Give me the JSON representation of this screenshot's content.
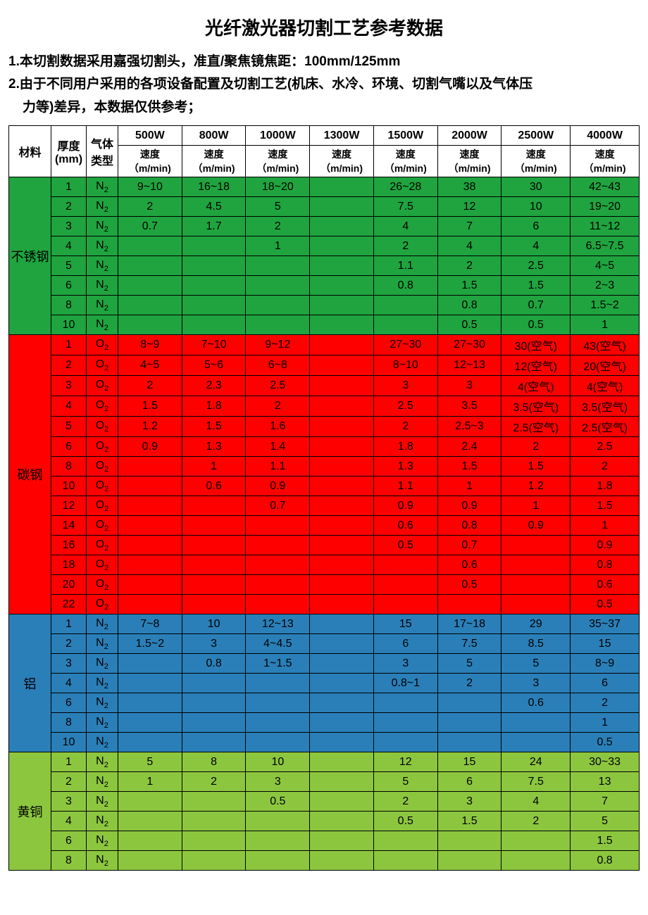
{
  "title": "光纤激光器切割工艺参考数据",
  "notes": {
    "n1": "1.本切割数据采用嘉强切割头，准直/聚焦镜焦距：100mm/125mm",
    "n2a": "2.由于不同用户采用的各项设备配置及切割工艺(机床、水冷、环境、切割气嘴以及气体压",
    "n2b": "力等)差异，本数据仅供参考；"
  },
  "headers": {
    "material": "材料",
    "thickness": "厚度\n(mm)",
    "gas": "气体\n类型",
    "speed": "速度\n（m/min)",
    "powers": [
      "500W",
      "800W",
      "1000W",
      "1300W",
      "1500W",
      "2000W",
      "2500W",
      "4000W"
    ]
  },
  "colors": {
    "stainless": "#1fa43f",
    "carbon": "#ff0000",
    "aluminum": "#2a7fb8",
    "brass": "#8cc63f"
  },
  "materials": [
    {
      "name": "不锈钢",
      "color": "stainless",
      "gas": "N₂",
      "rows": [
        {
          "t": "1",
          "v": [
            "9~10",
            "16~18",
            "18~20",
            "",
            "26~28",
            "38",
            "30",
            "42~43"
          ]
        },
        {
          "t": "2",
          "v": [
            "2",
            "4.5",
            "5",
            "",
            "7.5",
            "12",
            "10",
            "19~20"
          ]
        },
        {
          "t": "3",
          "v": [
            "0.7",
            "1.7",
            "2",
            "",
            "4",
            "7",
            "6",
            "11~12"
          ]
        },
        {
          "t": "4",
          "v": [
            "",
            "",
            "1",
            "",
            "2",
            "4",
            "4",
            "6.5~7.5"
          ]
        },
        {
          "t": "5",
          "v": [
            "",
            "",
            "",
            "",
            "1.1",
            "2",
            "2.5",
            "4~5"
          ]
        },
        {
          "t": "6",
          "v": [
            "",
            "",
            "",
            "",
            "0.8",
            "1.5",
            "1.5",
            "2~3"
          ]
        },
        {
          "t": "8",
          "v": [
            "",
            "",
            "",
            "",
            "",
            "0.8",
            "0.7",
            "1.5~2"
          ]
        },
        {
          "t": "10",
          "v": [
            "",
            "",
            "",
            "",
            "",
            "0.5",
            "0.5",
            "1"
          ]
        }
      ]
    },
    {
      "name": "碳钢",
      "color": "carbon",
      "gas": "O₂",
      "rows": [
        {
          "t": "1",
          "v": [
            "8~9",
            "7~10",
            "9~12",
            "",
            "27~30",
            "27~30",
            "30(空气)",
            "43(空气)"
          ]
        },
        {
          "t": "2",
          "v": [
            "4~5",
            "5~6",
            "6~8",
            "",
            "8~10",
            "12~13",
            "12(空气)",
            "20(空气)"
          ]
        },
        {
          "t": "3",
          "v": [
            "2",
            "2.3",
            "2.5",
            "",
            "3",
            "3",
            "4(空气)",
            "4(空气)"
          ]
        },
        {
          "t": "4",
          "v": [
            "1.5",
            "1.8",
            "2",
            "",
            "2.5",
            "3.5",
            "3.5(空气)",
            "3.5(空气)"
          ]
        },
        {
          "t": "5",
          "v": [
            "1.2",
            "1.5",
            "1.6",
            "",
            "2",
            "2.5~3",
            "2.5(空气)",
            "2.5(空气)"
          ]
        },
        {
          "t": "6",
          "v": [
            "0.9",
            "1.3",
            "1.4",
            "",
            "1.8",
            "2.4",
            "2",
            "2.5"
          ]
        },
        {
          "t": "8",
          "v": [
            "",
            "1",
            "1.1",
            "",
            "1.3",
            "1.5",
            "1.5",
            "2"
          ]
        },
        {
          "t": "10",
          "v": [
            "",
            "0.6",
            "0.9",
            "",
            "1.1",
            "1",
            "1.2",
            "1.8"
          ]
        },
        {
          "t": "12",
          "v": [
            "",
            "",
            "0.7",
            "",
            "0.9",
            "0.9",
            "1",
            "1.5"
          ]
        },
        {
          "t": "14",
          "v": [
            "",
            "",
            "",
            "",
            "0.6",
            "0.8",
            "0.9",
            "1"
          ]
        },
        {
          "t": "16",
          "v": [
            "",
            "",
            "",
            "",
            "0.5",
            "0.7",
            "",
            "0.9"
          ]
        },
        {
          "t": "18",
          "v": [
            "",
            "",
            "",
            "",
            "",
            "0.6",
            "",
            "0.8"
          ]
        },
        {
          "t": "20",
          "v": [
            "",
            "",
            "",
            "",
            "",
            "0.5",
            "",
            "0.6"
          ]
        },
        {
          "t": "22",
          "v": [
            "",
            "",
            "",
            "",
            "",
            "",
            "",
            "0.5"
          ]
        }
      ]
    },
    {
      "name": "铝",
      "color": "aluminum",
      "gas": "N₂",
      "rows": [
        {
          "t": "1",
          "v": [
            "7~8",
            "10",
            "12~13",
            "",
            "15",
            "17~18",
            "29",
            "35~37"
          ]
        },
        {
          "t": "2",
          "v": [
            "1.5~2",
            "3",
            "4~4.5",
            "",
            "6",
            "7.5",
            "8.5",
            "15"
          ]
        },
        {
          "t": "3",
          "v": [
            "",
            "0.8",
            "1~1.5",
            "",
            "3",
            "5",
            "5",
            "8~9"
          ]
        },
        {
          "t": "4",
          "v": [
            "",
            "",
            "",
            "",
            "0.8~1",
            "2",
            "3",
            "6"
          ]
        },
        {
          "t": "6",
          "v": [
            "",
            "",
            "",
            "",
            "",
            "",
            "0.6",
            "2"
          ]
        },
        {
          "t": "8",
          "v": [
            "",
            "",
            "",
            "",
            "",
            "",
            "",
            "1"
          ]
        },
        {
          "t": "10",
          "v": [
            "",
            "",
            "",
            "",
            "",
            "",
            "",
            "0.5"
          ]
        }
      ]
    },
    {
      "name": "黄铜",
      "color": "brass",
      "gas": "N₂",
      "rows": [
        {
          "t": "1",
          "v": [
            "5",
            "8",
            "10",
            "",
            "12",
            "15",
            "24",
            "30~33"
          ]
        },
        {
          "t": "2",
          "v": [
            "1",
            "2",
            "3",
            "",
            "5",
            "6",
            "7.5",
            "13"
          ]
        },
        {
          "t": "3",
          "v": [
            "",
            "",
            "0.5",
            "",
            "2",
            "3",
            "4",
            "7"
          ]
        },
        {
          "t": "4",
          "v": [
            "",
            "",
            "",
            "",
            "0.5",
            "1.5",
            "2",
            "5"
          ]
        },
        {
          "t": "6",
          "v": [
            "",
            "",
            "",
            "",
            "",
            "",
            "",
            "1.5"
          ]
        },
        {
          "t": "8",
          "v": [
            "",
            "",
            "",
            "",
            "",
            "",
            "",
            "0.8"
          ]
        }
      ]
    }
  ]
}
